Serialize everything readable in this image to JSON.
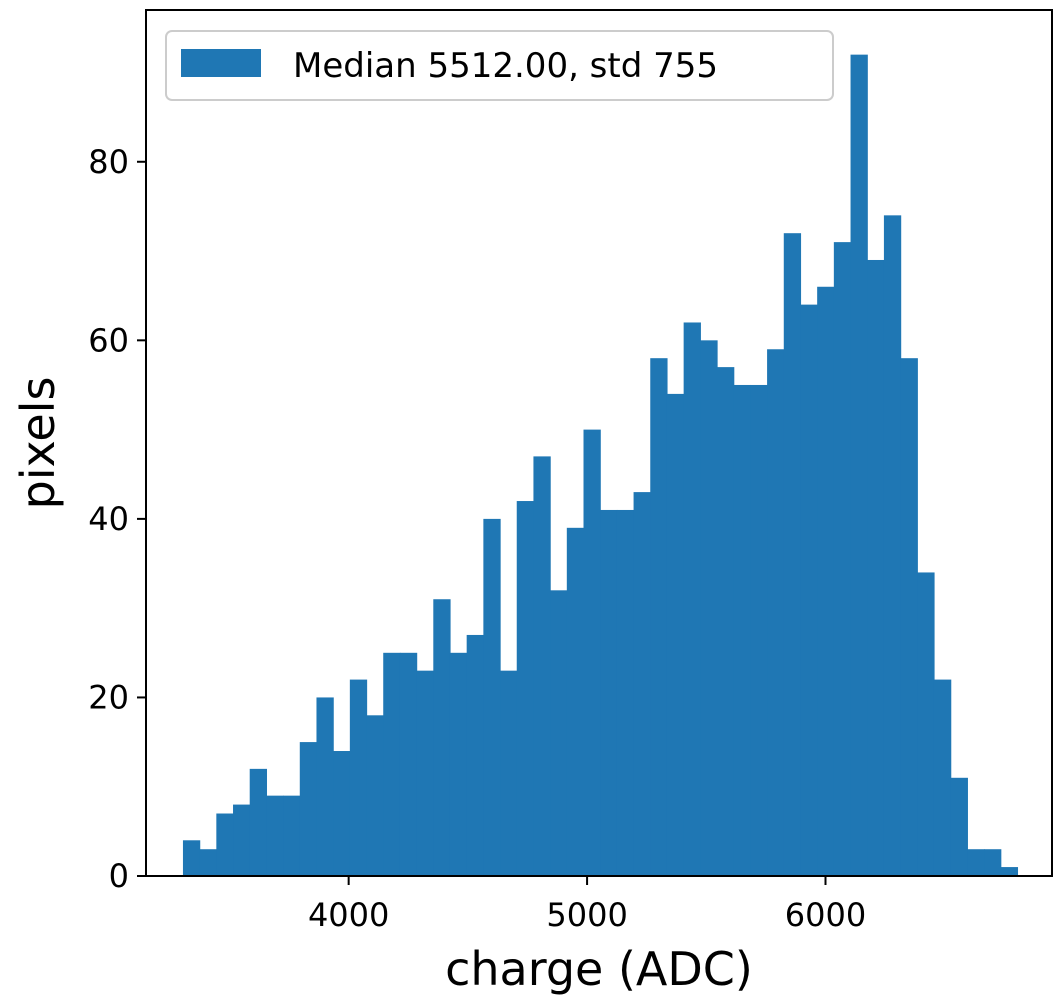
{
  "chart_data": {
    "type": "bar",
    "title": "",
    "xlabel": "charge (ADC)",
    "ylabel": "pixels",
    "xlim": [
      3150,
      6950
    ],
    "ylim": [
      0,
      97
    ],
    "bin_width": 70,
    "bins_start": [
      3305,
      3375,
      3445,
      3515,
      3585,
      3655,
      3725,
      3795,
      3865,
      3935,
      4005,
      4075,
      4145,
      4215,
      4285,
      4355,
      4425,
      4495,
      4565,
      4635,
      4705,
      4775,
      4845,
      4915,
      4985,
      5055,
      5125,
      5195,
      5265,
      5335,
      5405,
      5475,
      5545,
      5615,
      5685,
      5755,
      5825,
      5895,
      5965,
      6035,
      6105,
      6175,
      6245,
      6315,
      6385,
      6455,
      6525,
      6595,
      6665,
      6735
    ],
    "values": [
      4,
      3,
      7,
      8,
      12,
      9,
      9,
      15,
      20,
      14,
      22,
      18,
      25,
      25,
      23,
      31,
      25,
      27,
      40,
      23,
      42,
      47,
      32,
      39,
      50,
      41,
      41,
      43,
      58,
      54,
      62,
      60,
      57,
      55,
      55,
      59,
      72,
      64,
      66,
      71,
      92,
      69,
      74,
      58,
      34,
      22,
      11,
      3,
      3,
      1
    ],
    "x_ticks": [
      4000,
      5000,
      6000
    ],
    "x_tick_labels": [
      "4000",
      "5000",
      "6000"
    ],
    "y_ticks": [
      0,
      20,
      40,
      60,
      80
    ],
    "y_tick_labels": [
      "0",
      "20",
      "40",
      "60",
      "80"
    ],
    "series": [
      {
        "name": "Median 5512.00, std   755"
      }
    ],
    "legend_position": "top-left",
    "grid": false,
    "colors": {
      "bar": "#1f77b4",
      "axis": "#000000",
      "legend_border": "#cccccc"
    }
  }
}
